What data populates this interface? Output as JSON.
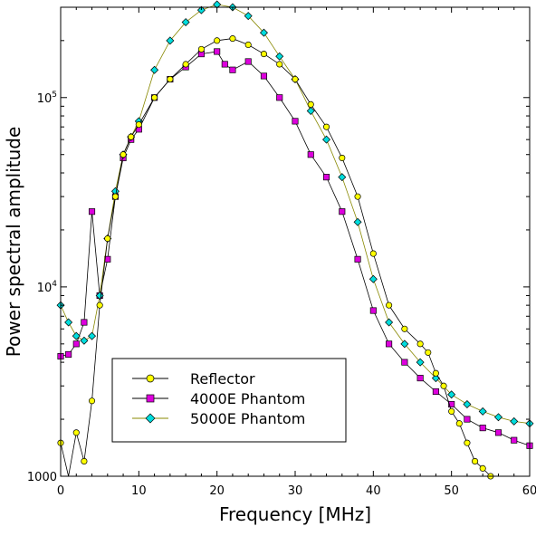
{
  "chart_data": {
    "type": "line",
    "xlabel": "Frequency [MHz]",
    "ylabel": "Power spectral amplitude",
    "xlim": [
      0,
      60
    ],
    "ylim": [
      1000,
      300000
    ],
    "yscale": "log",
    "grid": false,
    "legend_position": "lower-left",
    "x_ticks": [
      {
        "value": 0,
        "label": "0"
      },
      {
        "value": 10,
        "label": "10"
      },
      {
        "value": 20,
        "label": "20"
      },
      {
        "value": 30,
        "label": "30"
      },
      {
        "value": 40,
        "label": "40"
      },
      {
        "value": 50,
        "label": "50"
      },
      {
        "value": 60,
        "label": "60"
      }
    ],
    "y_ticks": [
      {
        "value": 1000,
        "base": "1000",
        "sup": ""
      },
      {
        "value": 10000,
        "base": "10",
        "sup": "4"
      },
      {
        "value": 100000,
        "base": "10",
        "sup": "5"
      }
    ],
    "series": [
      {
        "name": "Reflector",
        "color": "#ffff00",
        "line_color": "#000000",
        "marker": "circle",
        "points": [
          [
            0,
            1500
          ],
          [
            1,
            950
          ],
          [
            2,
            1700
          ],
          [
            3,
            1200
          ],
          [
            4,
            2500
          ],
          [
            5,
            8000
          ],
          [
            6,
            18000
          ],
          [
            7,
            30000
          ],
          [
            8,
            50000
          ],
          [
            9,
            62000
          ],
          [
            10,
            72000
          ],
          [
            12,
            100000
          ],
          [
            14,
            125000
          ],
          [
            16,
            150000
          ],
          [
            18,
            180000
          ],
          [
            20,
            200000
          ],
          [
            22,
            205000
          ],
          [
            24,
            190000
          ],
          [
            26,
            170000
          ],
          [
            28,
            150000
          ],
          [
            30,
            125000
          ],
          [
            32,
            92000
          ],
          [
            34,
            70000
          ],
          [
            36,
            48000
          ],
          [
            38,
            30000
          ],
          [
            40,
            15000
          ],
          [
            42,
            8000
          ],
          [
            44,
            6000
          ],
          [
            46,
            5000
          ],
          [
            47,
            4500
          ],
          [
            48,
            3500
          ],
          [
            49,
            3000
          ],
          [
            50,
            2200
          ],
          [
            51,
            1900
          ],
          [
            52,
            1500
          ],
          [
            53,
            1200
          ],
          [
            54,
            1100
          ],
          [
            55,
            1000
          ],
          [
            56,
            950
          ]
        ]
      },
      {
        "name": "4000E Phantom",
        "color": "#dd00dd",
        "line_color": "#000000",
        "marker": "square",
        "points": [
          [
            0,
            4300
          ],
          [
            1,
            4400
          ],
          [
            2,
            5000
          ],
          [
            3,
            6500
          ],
          [
            4,
            25000
          ],
          [
            5,
            9000
          ],
          [
            6,
            14000
          ],
          [
            7,
            30000
          ],
          [
            8,
            48000
          ],
          [
            9,
            60000
          ],
          [
            10,
            68000
          ],
          [
            12,
            100000
          ],
          [
            14,
            125000
          ],
          [
            16,
            145000
          ],
          [
            18,
            170000
          ],
          [
            20,
            175000
          ],
          [
            21,
            150000
          ],
          [
            22,
            140000
          ],
          [
            24,
            155000
          ],
          [
            26,
            130000
          ],
          [
            28,
            100000
          ],
          [
            30,
            75000
          ],
          [
            32,
            50000
          ],
          [
            34,
            38000
          ],
          [
            36,
            25000
          ],
          [
            38,
            14000
          ],
          [
            40,
            7500
          ],
          [
            42,
            5000
          ],
          [
            44,
            4000
          ],
          [
            46,
            3300
          ],
          [
            48,
            2800
          ],
          [
            50,
            2400
          ],
          [
            52,
            2000
          ],
          [
            54,
            1800
          ],
          [
            56,
            1700
          ],
          [
            58,
            1550
          ],
          [
            60,
            1450
          ]
        ]
      },
      {
        "name": "5000E Phantom",
        "color": "#00dddd",
        "line_color": "#888800",
        "marker": "diamond",
        "points": [
          [
            0,
            8000
          ],
          [
            1,
            6500
          ],
          [
            2,
            5500
          ],
          [
            3,
            5200
          ],
          [
            4,
            5500
          ],
          [
            5,
            9000
          ],
          [
            6,
            18000
          ],
          [
            7,
            32000
          ],
          [
            8,
            50000
          ],
          [
            9,
            62000
          ],
          [
            10,
            75000
          ],
          [
            12,
            140000
          ],
          [
            14,
            200000
          ],
          [
            16,
            250000
          ],
          [
            18,
            290000
          ],
          [
            20,
            310000
          ],
          [
            22,
            300000
          ],
          [
            24,
            270000
          ],
          [
            26,
            220000
          ],
          [
            28,
            165000
          ],
          [
            30,
            125000
          ],
          [
            32,
            85000
          ],
          [
            34,
            60000
          ],
          [
            36,
            38000
          ],
          [
            38,
            22000
          ],
          [
            40,
            11000
          ],
          [
            42,
            6500
          ],
          [
            44,
            5000
          ],
          [
            46,
            4000
          ],
          [
            48,
            3300
          ],
          [
            50,
            2700
          ],
          [
            52,
            2400
          ],
          [
            54,
            2200
          ],
          [
            56,
            2050
          ],
          [
            58,
            1950
          ],
          [
            60,
            1900
          ]
        ]
      }
    ]
  }
}
